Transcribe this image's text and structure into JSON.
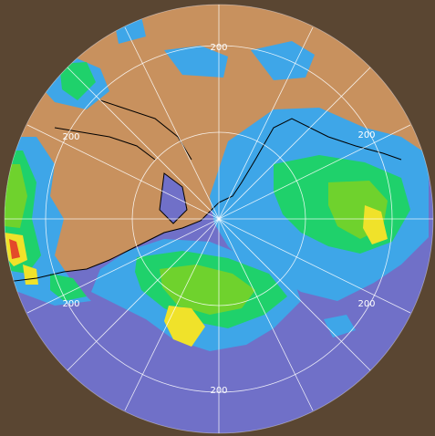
{
  "map": {
    "type": "weather-radar-composite",
    "colors": {
      "outside_background": "#5a4632",
      "land": "#c8915e",
      "sea": "#7070c8",
      "range_ring_stroke": "#ffffff",
      "coastline": "#000000",
      "precip_light": "#3ea6e8",
      "precip_moderate": "#1fd16b",
      "precip_heavy": "#6fd22d",
      "precip_very_heavy": "#f0e22a",
      "precip_intense": "#e34a2a"
    },
    "range_labels": [
      {
        "id": "north",
        "text": "200"
      },
      {
        "id": "northwest",
        "text": "200"
      },
      {
        "id": "northeast",
        "text": "200"
      },
      {
        "id": "east",
        "text": "200"
      },
      {
        "id": "southwest",
        "text": "200"
      },
      {
        "id": "southeast",
        "text": "200"
      },
      {
        "id": "south",
        "text": "200"
      }
    ]
  }
}
